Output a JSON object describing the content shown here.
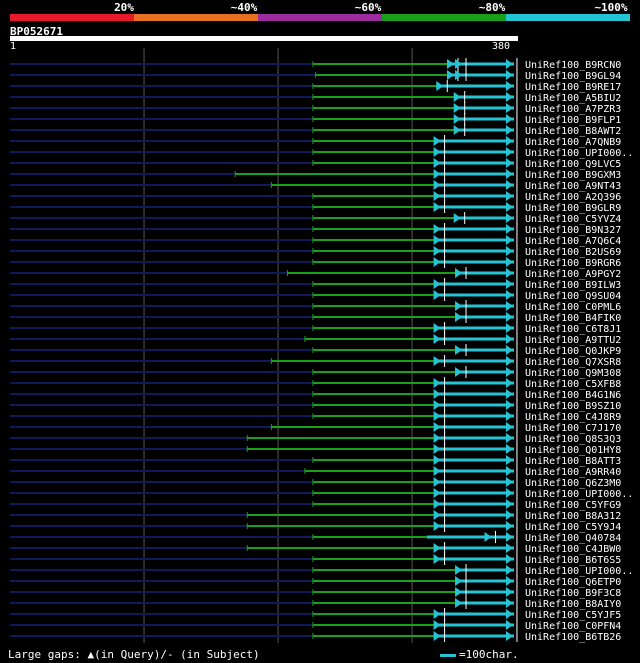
{
  "legend": {
    "labels": [
      "20%",
      "~40%",
      "~60%",
      "~80%",
      "~100%"
    ],
    "colors": [
      "#e8192c",
      "#e87020",
      "#9c2ca0",
      "#18a018",
      "#24c4d4"
    ]
  },
  "query": {
    "name": "BP052671",
    "start": "1",
    "end": "380",
    "length": 380
  },
  "footer": {
    "gaps_note": "Large gaps: ▲(in Query)/- (in Subject)",
    "scale_note": "=100char."
  },
  "chart_data": {
    "type": "alignment",
    "xlim": [
      1,
      380
    ],
    "hits": [
      {
        "name": "UniRef100_B9RCN0",
        "green_start": 227,
        "cyan_start": 327,
        "arrows": [
          330,
          336,
          374
        ]
      },
      {
        "name": "UniRef100_B9GL94",
        "green_start": 229,
        "cyan_start": 327,
        "arrows": [
          330,
          336,
          374
        ]
      },
      {
        "name": "UniRef100_B9RE17",
        "green_start": 227,
        "cyan_start": 322,
        "arrows": [
          322,
          374
        ]
      },
      {
        "name": "UniRef100_A5BIU2",
        "green_start": 227,
        "cyan_start": 335,
        "arrows": [
          335,
          374
        ]
      },
      {
        "name": "UniRef100_A7PZR3",
        "green_start": 227,
        "cyan_start": 335,
        "arrows": [
          335,
          374
        ]
      },
      {
        "name": "UniRef100_B9FLP1",
        "green_start": 227,
        "cyan_start": 335,
        "arrows": [
          335,
          374
        ]
      },
      {
        "name": "UniRef100_B8AWT2",
        "green_start": 227,
        "cyan_start": 335,
        "arrows": [
          335,
          374
        ]
      },
      {
        "name": "UniRef100_A7QNB9",
        "green_start": 227,
        "cyan_start": 320,
        "arrows": [
          320,
          374
        ]
      },
      {
        "name": "UniRef100_UPI000..",
        "green_start": 227,
        "cyan_start": 320,
        "arrows": [
          320,
          374
        ]
      },
      {
        "name": "UniRef100_Q9LVC5",
        "green_start": 227,
        "cyan_start": 320,
        "arrows": [
          320,
          374
        ]
      },
      {
        "name": "UniRef100_B9GXM3",
        "green_start": 169,
        "cyan_start": 320,
        "arrows": [
          320,
          374
        ]
      },
      {
        "name": "UniRef100_A9NT43",
        "green_start": 196,
        "cyan_start": 320,
        "arrows": [
          320,
          374
        ]
      },
      {
        "name": "UniRef100_A2Q396",
        "green_start": 227,
        "cyan_start": 320,
        "arrows": [
          320,
          374
        ]
      },
      {
        "name": "UniRef100_B9GLR9",
        "green_start": 227,
        "cyan_start": 320,
        "arrows": [
          320,
          374
        ]
      },
      {
        "name": "UniRef100_C5YVZ4",
        "green_start": 227,
        "cyan_start": 335,
        "arrows": [
          335,
          374
        ]
      },
      {
        "name": "UniRef100_B9N327",
        "green_start": 227,
        "cyan_start": 320,
        "arrows": [
          320,
          374
        ]
      },
      {
        "name": "UniRef100_A7Q6C4",
        "green_start": 227,
        "cyan_start": 320,
        "arrows": [
          320,
          374
        ]
      },
      {
        "name": "UniRef100_B2US69",
        "green_start": 227,
        "cyan_start": 320,
        "arrows": [
          320,
          374
        ]
      },
      {
        "name": "UniRef100_B9RGR6",
        "green_start": 227,
        "cyan_start": 320,
        "arrows": [
          320,
          374
        ]
      },
      {
        "name": "UniRef100_A9PGY2",
        "green_start": 208,
        "cyan_start": 336,
        "arrows": [
          336,
          374
        ]
      },
      {
        "name": "UniRef100_B9ILW3",
        "green_start": 227,
        "cyan_start": 320,
        "arrows": [
          320,
          374
        ]
      },
      {
        "name": "UniRef100_Q9SU04",
        "green_start": 227,
        "cyan_start": 320,
        "arrows": [
          320,
          374
        ]
      },
      {
        "name": "UniRef100_C0PML6",
        "green_start": 227,
        "cyan_start": 336,
        "arrows": [
          336,
          374
        ]
      },
      {
        "name": "UniRef100_B4FIK0",
        "green_start": 227,
        "cyan_start": 336,
        "arrows": [
          336,
          374
        ]
      },
      {
        "name": "UniRef100_C6T8J1",
        "green_start": 227,
        "cyan_start": 320,
        "arrows": [
          320,
          374
        ]
      },
      {
        "name": "UniRef100_A9TTU2",
        "green_start": 221,
        "cyan_start": 320,
        "arrows": [
          320,
          374
        ]
      },
      {
        "name": "UniRef100_Q0JKP9",
        "green_start": 227,
        "cyan_start": 336,
        "arrows": [
          336,
          374
        ]
      },
      {
        "name": "UniRef100_Q7XSR8",
        "green_start": 196,
        "cyan_start": 320,
        "arrows": [
          320,
          374
        ]
      },
      {
        "name": "UniRef100_Q9M308",
        "green_start": 227,
        "cyan_start": 336,
        "arrows": [
          336,
          374
        ]
      },
      {
        "name": "UniRef100_C5XFB8",
        "green_start": 227,
        "cyan_start": 320,
        "arrows": [
          320,
          374
        ]
      },
      {
        "name": "UniRef100_B4G1N6",
        "green_start": 227,
        "cyan_start": 320,
        "arrows": [
          320,
          374
        ]
      },
      {
        "name": "UniRef100_B9SZ10",
        "green_start": 227,
        "cyan_start": 320,
        "arrows": [
          320,
          374
        ]
      },
      {
        "name": "UniRef100_C4J8R9",
        "green_start": 227,
        "cyan_start": 320,
        "arrows": [
          320,
          374
        ]
      },
      {
        "name": "UniRef100_C7J170",
        "green_start": 196,
        "cyan_start": 320,
        "arrows": [
          320,
          374
        ]
      },
      {
        "name": "UniRef100_Q8S3Q3",
        "green_start": 178,
        "cyan_start": 320,
        "arrows": [
          320,
          374
        ]
      },
      {
        "name": "UniRef100_Q01HY8",
        "green_start": 178,
        "cyan_start": 320,
        "arrows": [
          320,
          374
        ]
      },
      {
        "name": "UniRef100_B8ATT3",
        "green_start": 227,
        "cyan_start": 320,
        "arrows": [
          320,
          374
        ]
      },
      {
        "name": "UniRef100_A9RR40",
        "green_start": 221,
        "cyan_start": 320,
        "arrows": [
          320,
          374
        ]
      },
      {
        "name": "UniRef100_Q6Z3M0",
        "green_start": 227,
        "cyan_start": 320,
        "arrows": [
          320,
          374
        ]
      },
      {
        "name": "UniRef100_UPI000..",
        "green_start": 227,
        "cyan_start": 320,
        "arrows": [
          320,
          374
        ]
      },
      {
        "name": "UniRef100_C5YFG9",
        "green_start": 227,
        "cyan_start": 320,
        "arrows": [
          320,
          374
        ]
      },
      {
        "name": "UniRef100_B8A312",
        "green_start": 178,
        "cyan_start": 320,
        "arrows": [
          320,
          374
        ]
      },
      {
        "name": "UniRef100_C5Y9J4",
        "green_start": 178,
        "cyan_start": 320,
        "arrows": [
          320,
          374
        ]
      },
      {
        "name": "UniRef100_Q40784",
        "green_start": 227,
        "cyan_start": 312,
        "arrows": [
          358,
          374
        ]
      },
      {
        "name": "UniRef100_C4JBW0",
        "green_start": 178,
        "cyan_start": 320,
        "arrows": [
          320,
          374
        ]
      },
      {
        "name": "UniRef100_B6T6S5",
        "green_start": 227,
        "cyan_start": 320,
        "arrows": [
          320,
          374
        ]
      },
      {
        "name": "UniRef100_UPI000..",
        "green_start": 227,
        "cyan_start": 336,
        "arrows": [
          336,
          374
        ]
      },
      {
        "name": "UniRef100_Q6ETP0",
        "green_start": 227,
        "cyan_start": 336,
        "arrows": [
          336,
          374
        ]
      },
      {
        "name": "UniRef100_B9F3C8",
        "green_start": 227,
        "cyan_start": 336,
        "arrows": [
          336,
          374
        ]
      },
      {
        "name": "UniRef100_B8AIY0",
        "green_start": 227,
        "cyan_start": 336,
        "arrows": [
          336,
          374
        ]
      },
      {
        "name": "UniRef100_C5YJF5",
        "green_start": 227,
        "cyan_start": 320,
        "arrows": [
          320,
          374
        ]
      },
      {
        "name": "UniRef100_C0PFN4",
        "green_start": 227,
        "cyan_start": 320,
        "arrows": [
          320,
          374
        ]
      },
      {
        "name": "UniRef100_B6TB26",
        "green_start": 227,
        "cyan_start": 320,
        "arrows": [
          320,
          374
        ]
      }
    ]
  }
}
